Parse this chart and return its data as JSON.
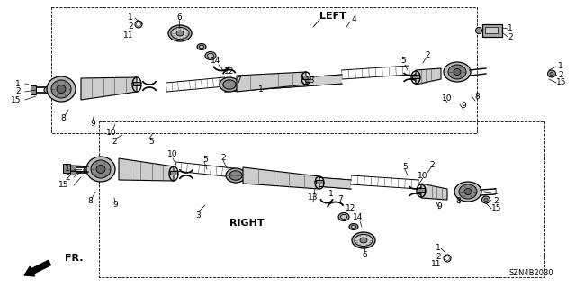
{
  "bg_color": "#ffffff",
  "diagram_code": "SZN4B2030",
  "left_label": "LEFT",
  "right_label": "RIGHT",
  "fr_label": "FR.",
  "line_color": "#000000",
  "text_color": "#000000",
  "gray_dark": "#555555",
  "gray_mid": "#888888",
  "gray_light": "#cccccc",
  "gray_lighter": "#e8e8e8",
  "upper_box": [
    57,
    8,
    530,
    8,
    530,
    148,
    57,
    148
  ],
  "lower_box": [
    110,
    138,
    605,
    138,
    605,
    310,
    110,
    310
  ]
}
